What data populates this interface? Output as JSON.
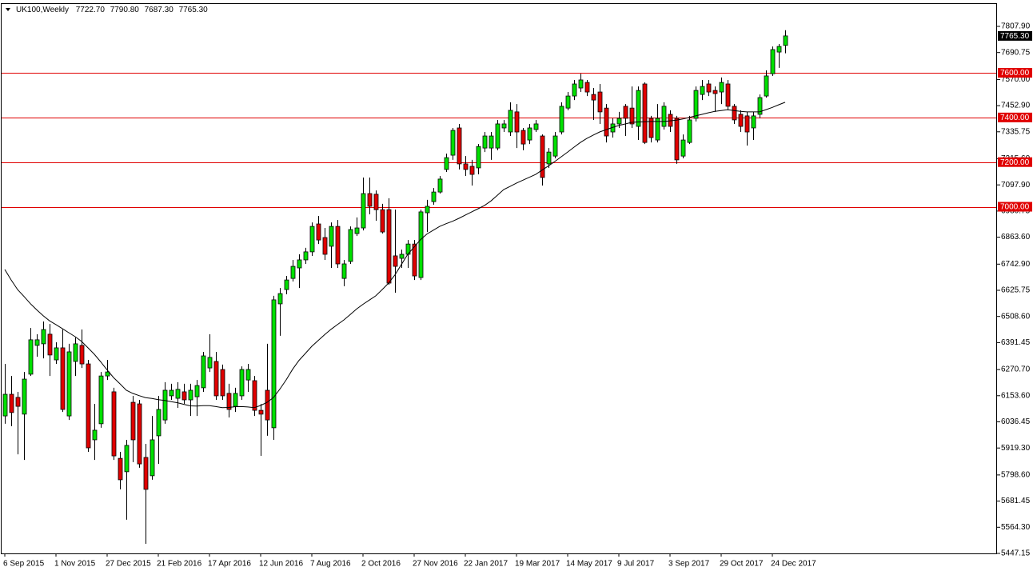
{
  "chart_data": {
    "type": "candlestick",
    "title": "UK100,Weekly",
    "header_values": [
      "7722.70",
      "7790.80",
      "7687.30",
      "7765.30"
    ],
    "up_color": "#00e000",
    "down_color": "#e00000",
    "ma_color": "#000000",
    "level_color": "#e00000",
    "ylim": [
      5447.15,
      7911.8
    ],
    "yticks": [
      {
        "value": 7807.9,
        "label": "7807.90"
      },
      {
        "value": 7690.75,
        "label": "7690.75"
      },
      {
        "value": 7570,
        "label": "7570.00"
      },
      {
        "value": 7452.9,
        "label": "7452.90"
      },
      {
        "value": 7335.75,
        "label": "7335.75"
      },
      {
        "value": 7215.6,
        "label": "7215.60"
      },
      {
        "value": 7097.9,
        "label": "7097.90"
      },
      {
        "value": 6980.75,
        "label": "6980.75"
      },
      {
        "value": 6863.6,
        "label": "6863.60"
      },
      {
        "value": 6742.9,
        "label": "6742.90"
      },
      {
        "value": 6625.75,
        "label": "6625.75"
      },
      {
        "value": 6508.6,
        "label": "6508.60"
      },
      {
        "value": 6391.45,
        "label": "6391.45"
      },
      {
        "value": 6270.7,
        "label": "6270.70"
      },
      {
        "value": 6153.6,
        "label": "6153.60"
      },
      {
        "value": 6036.45,
        "label": "6036.45"
      },
      {
        "value": 5919.3,
        "label": "5919.30"
      },
      {
        "value": 5798.6,
        "label": "5798.60"
      },
      {
        "value": 5681.45,
        "label": "5681.45"
      },
      {
        "value": 5564.3,
        "label": "5564.30"
      },
      {
        "value": 5447.15,
        "label": "5447.15"
      }
    ],
    "levels": [
      {
        "value": 7600,
        "label": "7600.00"
      },
      {
        "value": 7400,
        "label": "7400.00"
      },
      {
        "value": 7200,
        "label": "7200.00"
      },
      {
        "value": 7000,
        "label": "7000.00"
      }
    ],
    "categories": [
      "6 Sep 2015",
      null,
      null,
      null,
      null,
      null,
      null,
      null,
      "1 Nov 2015",
      null,
      null,
      null,
      null,
      null,
      null,
      null,
      "27 Dec 2015",
      null,
      null,
      null,
      null,
      null,
      null,
      null,
      "21 Feb 2016",
      null,
      null,
      null,
      null,
      null,
      null,
      null,
      "17 Apr 2016",
      null,
      null,
      null,
      null,
      null,
      null,
      null,
      "12 Jun 2016",
      null,
      null,
      null,
      null,
      null,
      null,
      null,
      "7 Aug 2016",
      null,
      null,
      null,
      null,
      null,
      null,
      null,
      "2 Oct 2016",
      null,
      null,
      null,
      null,
      null,
      null,
      null,
      "27 Nov 2016",
      null,
      null,
      null,
      null,
      null,
      null,
      null,
      "22 Jan 2017",
      null,
      null,
      null,
      null,
      null,
      null,
      null,
      "19 Mar 2017",
      null,
      null,
      null,
      null,
      null,
      null,
      null,
      "14 May 2017",
      null,
      null,
      null,
      null,
      null,
      null,
      null,
      "9 Jul 2017",
      null,
      null,
      null,
      null,
      null,
      null,
      null,
      "3 Sep 2017",
      null,
      null,
      null,
      null,
      null,
      null,
      null,
      "29 Oct 2017",
      null,
      null,
      null,
      null,
      null,
      null,
      null,
      "24 Dec 2017",
      null,
      null
    ],
    "open": [
      6063,
      6160,
      6146,
      6071,
      6250,
      6379,
      6386,
      6429,
      6314,
      6368,
      6063,
      6307,
      6379,
      6296,
      5956,
      6028,
      6242,
      6171,
      5873,
      5813,
      6124,
      6117,
      5877,
      5795,
      5974,
      6045,
      6153,
      6142,
      6171,
      6135,
      6149,
      6189,
      6278,
      6307,
      6271,
      6164,
      6106,
      6153,
      6224,
      6221,
      6088,
      6178,
      6010,
      6565,
      6629,
      6679,
      6726,
      6762,
      6798,
      6923,
      6862,
      6823,
      6912,
      6679,
      6755,
      6880,
      6905,
      7059,
      7056,
      6987,
      6987,
      6780,
      6769,
      6787,
      6833,
      6683,
      6973,
      7023,
      7066,
      7167,
      7231,
      7353,
      7192,
      7181,
      7174,
      7263,
      7263,
      7263,
      7353,
      7335,
      7425,
      7342,
      7299,
      7346,
      7317,
      7192,
      7227,
      7335,
      7442,
      7496,
      7532,
      7557,
      7503,
      7514,
      7442,
      7335,
      7371,
      7450,
      7442,
      7360,
      7550,
      7396,
      7299,
      7360,
      7414,
      7396,
      7227,
      7288,
      7396,
      7503,
      7550,
      7521,
      7514,
      7550,
      7450,
      7414,
      7407,
      7353,
      7414,
      7496,
      7596,
      7693,
      7722.7
    ],
    "high": [
      6296,
      6242,
      6171,
      6260,
      6457,
      6429,
      6486,
      6475,
      6393,
      6450,
      6386,
      6414,
      6450,
      6314,
      6117,
      6260,
      6314,
      6189,
      5902,
      5956,
      6153,
      6135,
      5938,
      6063,
      6153,
      6214,
      6207,
      6214,
      6207,
      6207,
      6224,
      6350,
      6429,
      6350,
      6293,
      6207,
      6189,
      6285,
      6296,
      6242,
      6117,
      6386,
      6601,
      6636,
      6690,
      6762,
      6787,
      6816,
      6930,
      6959,
      6905,
      6930,
      6941,
      6762,
      6912,
      6952,
      7131,
      7131,
      7073,
      7013,
      7038,
      6987,
      6808,
      6851,
      6851,
      6987,
      7031,
      7084,
      7138,
      7238,
      7353,
      7371,
      7227,
      7210,
      7281,
      7335,
      7335,
      7389,
      7389,
      7468,
      7460,
      7353,
      7371,
      7389,
      7324,
      7263,
      7335,
      7468,
      7514,
      7568,
      7596,
      7568,
      7532,
      7550,
      7460,
      7396,
      7425,
      7460,
      7539,
      7539,
      7557,
      7407,
      7460,
      7468,
      7432,
      7407,
      7324,
      7407,
      7539,
      7568,
      7568,
      7539,
      7579,
      7568,
      7460,
      7432,
      7425,
      7425,
      7503,
      7611,
      7718,
      7729,
      7790.8
    ],
    "low": [
      6028,
      6017,
      5891,
      5866,
      6242,
      6328,
      6321,
      6242,
      6296,
      6081,
      6045,
      6242,
      6278,
      5902,
      5866,
      6010,
      6224,
      5866,
      5734,
      5598,
      5856,
      5831,
      5490,
      5777,
      5848,
      6028,
      6135,
      6099,
      6117,
      6063,
      6063,
      6171,
      6260,
      6135,
      6135,
      6056,
      6081,
      6135,
      6171,
      6063,
      5884,
      5974,
      5956,
      6422,
      6608,
      6665,
      6636,
      6744,
      6780,
      6833,
      6762,
      6726,
      6726,
      6644,
      6744,
      6869,
      6894,
      6966,
      6937,
      6880,
      6651,
      6615,
      6726,
      6726,
      6672,
      6672,
      6887,
      7009,
      7059,
      7156,
      7210,
      7167,
      7138,
      7095,
      7145,
      7245,
      7210,
      7253,
      7335,
      7317,
      7263,
      7253,
      7281,
      7335,
      7095,
      7174,
      7217,
      7324,
      7432,
      7478,
      7514,
      7496,
      7389,
      7371,
      7288,
      7310,
      7353,
      7317,
      7353,
      7299,
      7281,
      7288,
      7288,
      7346,
      7335,
      7192,
      7217,
      7281,
      7382,
      7478,
      7496,
      7425,
      7460,
      7432,
      7371,
      7335,
      7274,
      7299,
      7396,
      7489,
      7586,
      7622,
      7687.3
    ],
    "close": [
      6160,
      6078,
      6106,
      6228,
      6404,
      6404,
      6450,
      6336,
      6368,
      6092,
      6350,
      6386,
      6296,
      5920,
      5999,
      6242,
      6260,
      5884,
      5777,
      5931,
      5956,
      5848,
      5734,
      5956,
      6092,
      6178,
      6178,
      6182,
      6135,
      6178,
      6199,
      6332,
      6325,
      6153,
      6153,
      6092,
      6164,
      6271,
      6271,
      6088,
      6071,
      6045,
      6583,
      6611,
      6672,
      6733,
      6762,
      6798,
      6912,
      6851,
      6787,
      6912,
      6744,
      6744,
      6898,
      6905,
      7059,
      7002,
      6987,
      6887,
      6658,
      6733,
      6787,
      6833,
      6690,
      6977,
      7002,
      7066,
      7124,
      7220,
      7342,
      7192,
      7167,
      7145,
      7270,
      7317,
      7317,
      7371,
      7371,
      7432,
      7335,
      7281,
      7353,
      7371,
      7131,
      7245,
      7317,
      7450,
      7496,
      7550,
      7568,
      7514,
      7478,
      7425,
      7317,
      7371,
      7396,
      7396,
      7371,
      7521,
      7288,
      7310,
      7396,
      7450,
      7360,
      7210,
      7299,
      7389,
      7521,
      7539,
      7514,
      7507,
      7557,
      7450,
      7389,
      7360,
      7335,
      7407,
      7489,
      7586,
      7704,
      7718,
      7765.3
    ],
    "moving_average": [
      6719,
      6672,
      6629,
      6598,
      6566,
      6538,
      6512,
      6489,
      6472,
      6454,
      6436,
      6418,
      6397,
      6368,
      6339,
      6305,
      6269,
      6235,
      6207,
      6178,
      6164,
      6154,
      6145,
      6141,
      6136,
      6132,
      6127,
      6122,
      6115,
      6108,
      6107,
      6109,
      6109,
      6105,
      6100,
      6101,
      6104,
      6105,
      6103,
      6100,
      6110,
      6124,
      6145,
      6183,
      6225,
      6272,
      6312,
      6343,
      6375,
      6401,
      6427,
      6451,
      6472,
      6493,
      6517,
      6542,
      6563,
      6582,
      6601,
      6629,
      6658,
      6695,
      6741,
      6787,
      6820,
      6853,
      6878,
      6895,
      6912,
      6924,
      6935,
      6948,
      6963,
      6977,
      6991,
      7006,
      7026,
      7051,
      7077,
      7091,
      7106,
      7119,
      7132,
      7145,
      7164,
      7183,
      7203,
      7224,
      7245,
      7267,
      7288,
      7306,
      7321,
      7335,
      7345,
      7355,
      7364,
      7371,
      7378,
      7380,
      7381,
      7382,
      7382,
      7382,
      7385,
      7388,
      7393,
      7400,
      7407,
      7414,
      7421,
      7427,
      7431,
      7435,
      7431,
      7427,
      7425,
      7425,
      7425,
      7435,
      7445,
      7457,
      7468
    ]
  }
}
